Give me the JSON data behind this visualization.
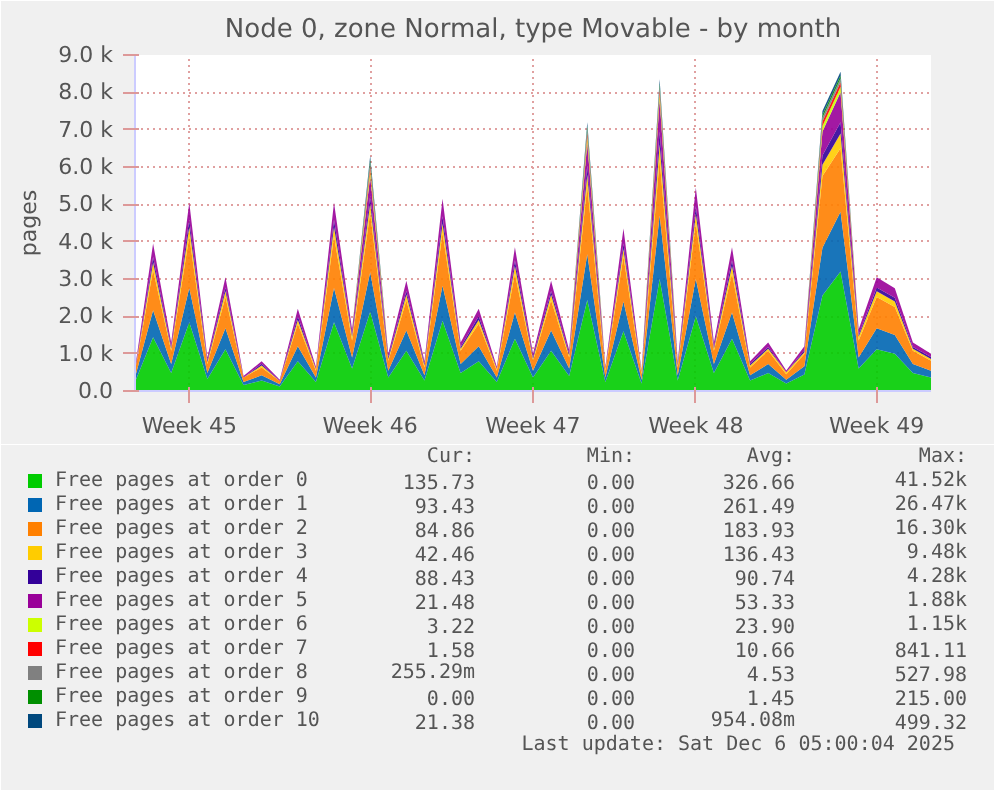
{
  "chart_data": {
    "type": "area",
    "stacked": true,
    "title": "Node 0, zone Normal, type Movable - by month",
    "ylabel": "pages",
    "categories": [
      null,
      null,
      null,
      "Week 45",
      null,
      null,
      null,
      null,
      null,
      null,
      null,
      null,
      null,
      "Week 46",
      null,
      null,
      null,
      null,
      null,
      null,
      null,
      null,
      "Week 47",
      null,
      null,
      null,
      null,
      null,
      null,
      null,
      null,
      "Week 48",
      null,
      null,
      null,
      null,
      null,
      null,
      null,
      null,
      null,
      "Week 49",
      null,
      null,
      null
    ],
    "ylim": [
      0,
      9000
    ],
    "yticks": [
      {
        "value": 0,
        "label": "0.0"
      },
      {
        "value": 1000,
        "label": "1.0 k"
      },
      {
        "value": 2000,
        "label": "2.0 k"
      },
      {
        "value": 3000,
        "label": "3.0 k"
      },
      {
        "value": 4000,
        "label": "4.0 k"
      },
      {
        "value": 5000,
        "label": "5.0 k"
      },
      {
        "value": 6000,
        "label": "6.0 k"
      },
      {
        "value": 7000,
        "label": "7.0 k"
      },
      {
        "value": 8000,
        "label": "8.0 k"
      },
      {
        "value": 9000,
        "label": "9.0 k"
      }
    ],
    "grid": true,
    "legend": "bottom",
    "series": [
      {
        "name": "Free pages at order  0",
        "color": "#00cc00",
        "values": [
          240,
          1440,
          480,
          1840,
          320,
          1120,
          160,
          280,
          120,
          800,
          240,
          1840,
          600,
          2120,
          360,
          1080,
          280,
          1880,
          480,
          800,
          240,
          1400,
          360,
          1080,
          400,
          2440,
          240,
          1600,
          200,
          3000,
          280,
          2000,
          480,
          1400,
          280,
          480,
          200,
          440,
          2560,
          3200,
          600,
          1120,
          1000,
          480,
          360
        ]
      },
      {
        "name": "Free pages at order  1",
        "color": "#0066b3",
        "values": [
          120,
          720,
          240,
          920,
          160,
          560,
          80,
          140,
          60,
          400,
          120,
          920,
          300,
          1060,
          180,
          540,
          140,
          940,
          240,
          400,
          120,
          700,
          180,
          540,
          200,
          1220,
          120,
          800,
          100,
          1700,
          140,
          1000,
          240,
          700,
          140,
          240,
          100,
          220,
          1280,
          1600,
          300,
          560,
          500,
          240,
          180
        ]
      },
      {
        "name": "Free pages at order  2",
        "color": "#ff8000",
        "values": [
          180,
          1080,
          360,
          1380,
          240,
          840,
          120,
          210,
          90,
          600,
          180,
          1380,
          450,
          1590,
          270,
          810,
          210,
          1410,
          360,
          600,
          180,
          1050,
          270,
          810,
          300,
          1830,
          180,
          1200,
          150,
          1500,
          210,
          1500,
          360,
          1050,
          210,
          360,
          150,
          330,
          1920,
          1700,
          450,
          840,
          750,
          360,
          270
        ]
      },
      {
        "name": "Free pages at order  3",
        "color": "#ffcc00",
        "values": [
          0,
          200,
          50,
          250,
          50,
          150,
          0,
          50,
          0,
          100,
          50,
          250,
          100,
          250,
          50,
          150,
          50,
          250,
          50,
          100,
          50,
          200,
          50,
          150,
          50,
          300,
          50,
          200,
          50,
          400,
          50,
          250,
          50,
          200,
          50,
          50,
          50,
          50,
          300,
          400,
          100,
          150,
          150,
          50,
          50
        ]
      },
      {
        "name": "Free pages at order  4",
        "color": "#330099",
        "values": [
          0,
          150,
          50,
          200,
          50,
          100,
          0,
          50,
          0,
          100,
          0,
          200,
          50,
          200,
          50,
          100,
          50,
          200,
          50,
          100,
          0,
          150,
          50,
          100,
          50,
          250,
          0,
          150,
          0,
          350,
          50,
          200,
          50,
          150,
          50,
          50,
          0,
          50,
          250,
          300,
          50,
          100,
          100,
          50,
          50
        ]
      },
      {
        "name": "Free pages at order  5",
        "color": "#990099",
        "values": [
          60,
          360,
          120,
          460,
          80,
          280,
          40,
          70,
          30,
          200,
          60,
          460,
          150,
          530,
          90,
          270,
          70,
          470,
          120,
          200,
          60,
          350,
          90,
          270,
          100,
          610,
          60,
          400,
          50,
          850,
          70,
          500,
          120,
          350,
          70,
          120,
          50,
          110,
          640,
          800,
          150,
          280,
          250,
          120,
          90
        ]
      },
      {
        "name": "Free pages at order  6",
        "color": "#ccff00",
        "values": [
          0,
          0,
          0,
          0,
          0,
          0,
          0,
          0,
          0,
          0,
          0,
          0,
          0,
          150,
          0,
          0,
          0,
          0,
          0,
          0,
          0,
          0,
          0,
          0,
          0,
          150,
          0,
          0,
          0,
          150,
          0,
          0,
          0,
          0,
          0,
          0,
          0,
          0,
          150,
          150,
          0,
          0,
          0,
          0,
          0
        ]
      },
      {
        "name": "Free pages at order  7",
        "color": "#ff0000",
        "values": [
          0,
          0,
          0,
          0,
          0,
          0,
          0,
          0,
          0,
          0,
          0,
          0,
          0,
          120,
          0,
          0,
          0,
          0,
          0,
          0,
          0,
          0,
          0,
          0,
          0,
          120,
          0,
          0,
          0,
          120,
          0,
          0,
          0,
          0,
          0,
          0,
          0,
          0,
          120,
          120,
          0,
          0,
          0,
          0,
          0
        ]
      },
      {
        "name": "Free pages at order  8",
        "color": "#808080",
        "values": [
          0,
          0,
          0,
          0,
          0,
          0,
          0,
          0,
          0,
          0,
          0,
          0,
          0,
          100,
          0,
          0,
          0,
          0,
          0,
          0,
          0,
          0,
          0,
          0,
          0,
          100,
          0,
          0,
          0,
          100,
          0,
          0,
          0,
          0,
          0,
          0,
          0,
          0,
          100,
          100,
          0,
          0,
          0,
          0,
          0
        ]
      },
      {
        "name": "Free pages at order  9",
        "color": "#008f00",
        "values": [
          0,
          0,
          0,
          0,
          0,
          0,
          0,
          0,
          0,
          0,
          0,
          0,
          0,
          80,
          0,
          0,
          0,
          0,
          0,
          0,
          0,
          0,
          0,
          0,
          0,
          80,
          0,
          0,
          0,
          80,
          0,
          0,
          0,
          0,
          0,
          0,
          0,
          0,
          80,
          80,
          0,
          0,
          0,
          0,
          0
        ]
      },
      {
        "name": "Free pages at order 10",
        "color": "#00487d",
        "values": [
          0,
          0,
          0,
          0,
          0,
          0,
          0,
          0,
          0,
          0,
          0,
          0,
          0,
          100,
          0,
          0,
          0,
          0,
          0,
          0,
          0,
          0,
          0,
          0,
          0,
          100,
          0,
          0,
          0,
          100,
          0,
          0,
          0,
          0,
          0,
          0,
          0,
          0,
          100,
          100,
          0,
          0,
          0,
          0,
          0
        ]
      }
    ],
    "annotations": [
      "Cur:",
      "Min:",
      "Avg:",
      "Max:",
      "135.73",
      "0.00",
      "326.66",
      "41.52k",
      "93.43",
      "0.00",
      "261.49",
      "26.47k",
      "84.86",
      "0.00",
      "183.93",
      "16.30k",
      "42.46",
      "0.00",
      "136.43",
      "9.48k",
      "88.43",
      "0.00",
      "90.74",
      "4.28k",
      "21.48",
      "0.00",
      "53.33",
      "1.88k",
      "3.22",
      "0.00",
      "23.90",
      "1.15k",
      "1.58",
      "0.00",
      "10.66",
      "841.11",
      "255.29m",
      "0.00",
      "4.53",
      "527.98",
      "0.00",
      "0.00",
      "1.45",
      "215.00",
      "21.38",
      "0.00",
      "954.08m",
      "499.32",
      "Last update: Sat Dec  6 05:00:04 2025"
    ]
  }
}
